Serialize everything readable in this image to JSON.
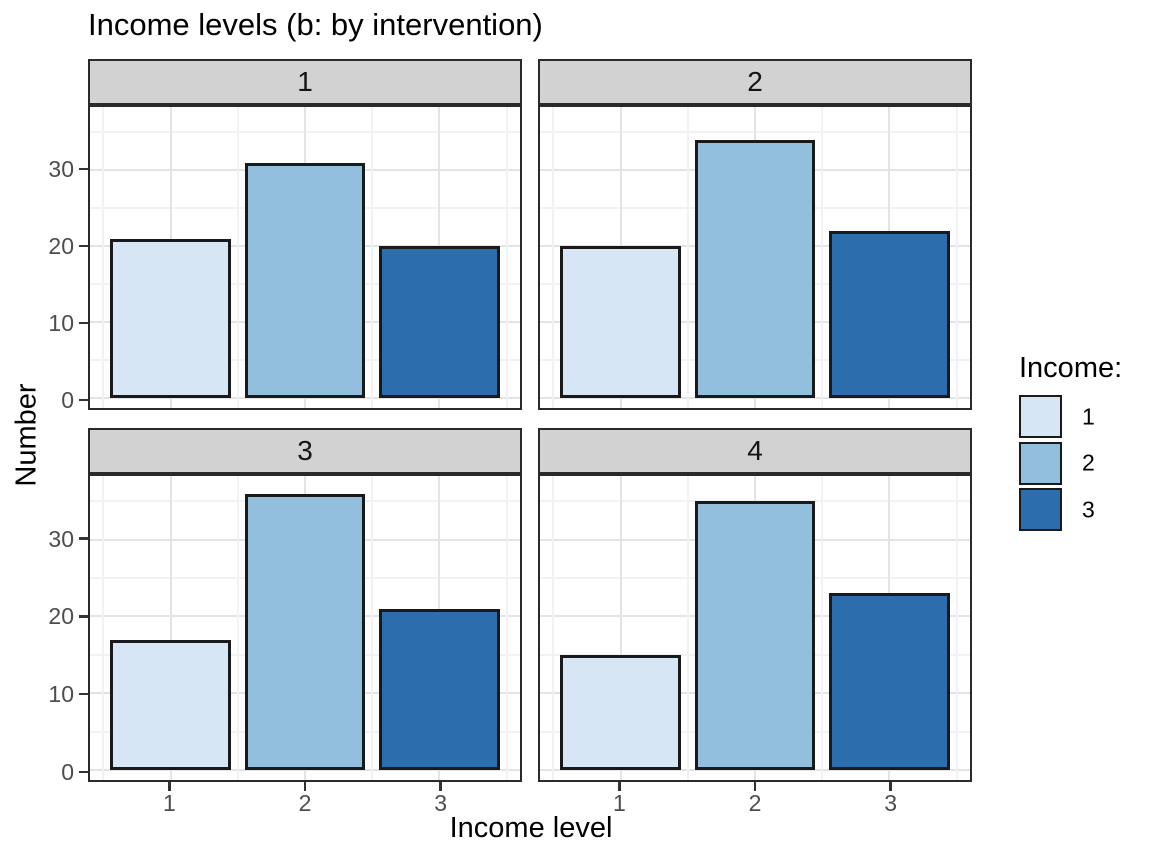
{
  "chart_data": {
    "type": "bar",
    "title": "Income levels (b: by intervention)",
    "xlabel": "Income level",
    "ylabel": "Number",
    "facet_variable": "intervention",
    "facets": [
      {
        "label": "1",
        "values": [
          21,
          31,
          20
        ]
      },
      {
        "label": "2",
        "values": [
          20,
          34,
          22
        ]
      },
      {
        "label": "3",
        "values": [
          17,
          36,
          21
        ]
      },
      {
        "label": "4",
        "values": [
          15,
          35,
          23
        ]
      }
    ],
    "categories": [
      "1",
      "2",
      "3"
    ],
    "y_ticks": [
      0,
      10,
      20,
      30
    ],
    "y_minor_ticks": [
      5,
      15,
      25,
      35
    ],
    "ylim": [
      -1.3,
      38.3
    ],
    "grid": "major+minor",
    "bar_colors": [
      "#D7E6F4",
      "#92BFDD",
      "#2B6DAD"
    ],
    "bar_border_color": "#1A1A1A",
    "strip_fill": "#D2D2D2",
    "legend": {
      "title": "Income:",
      "position": "right",
      "entries": [
        {
          "label": "1",
          "color": "#D7E6F4"
        },
        {
          "label": "2",
          "color": "#92BFDD"
        },
        {
          "label": "3",
          "color": "#2B6DAD"
        }
      ]
    }
  }
}
